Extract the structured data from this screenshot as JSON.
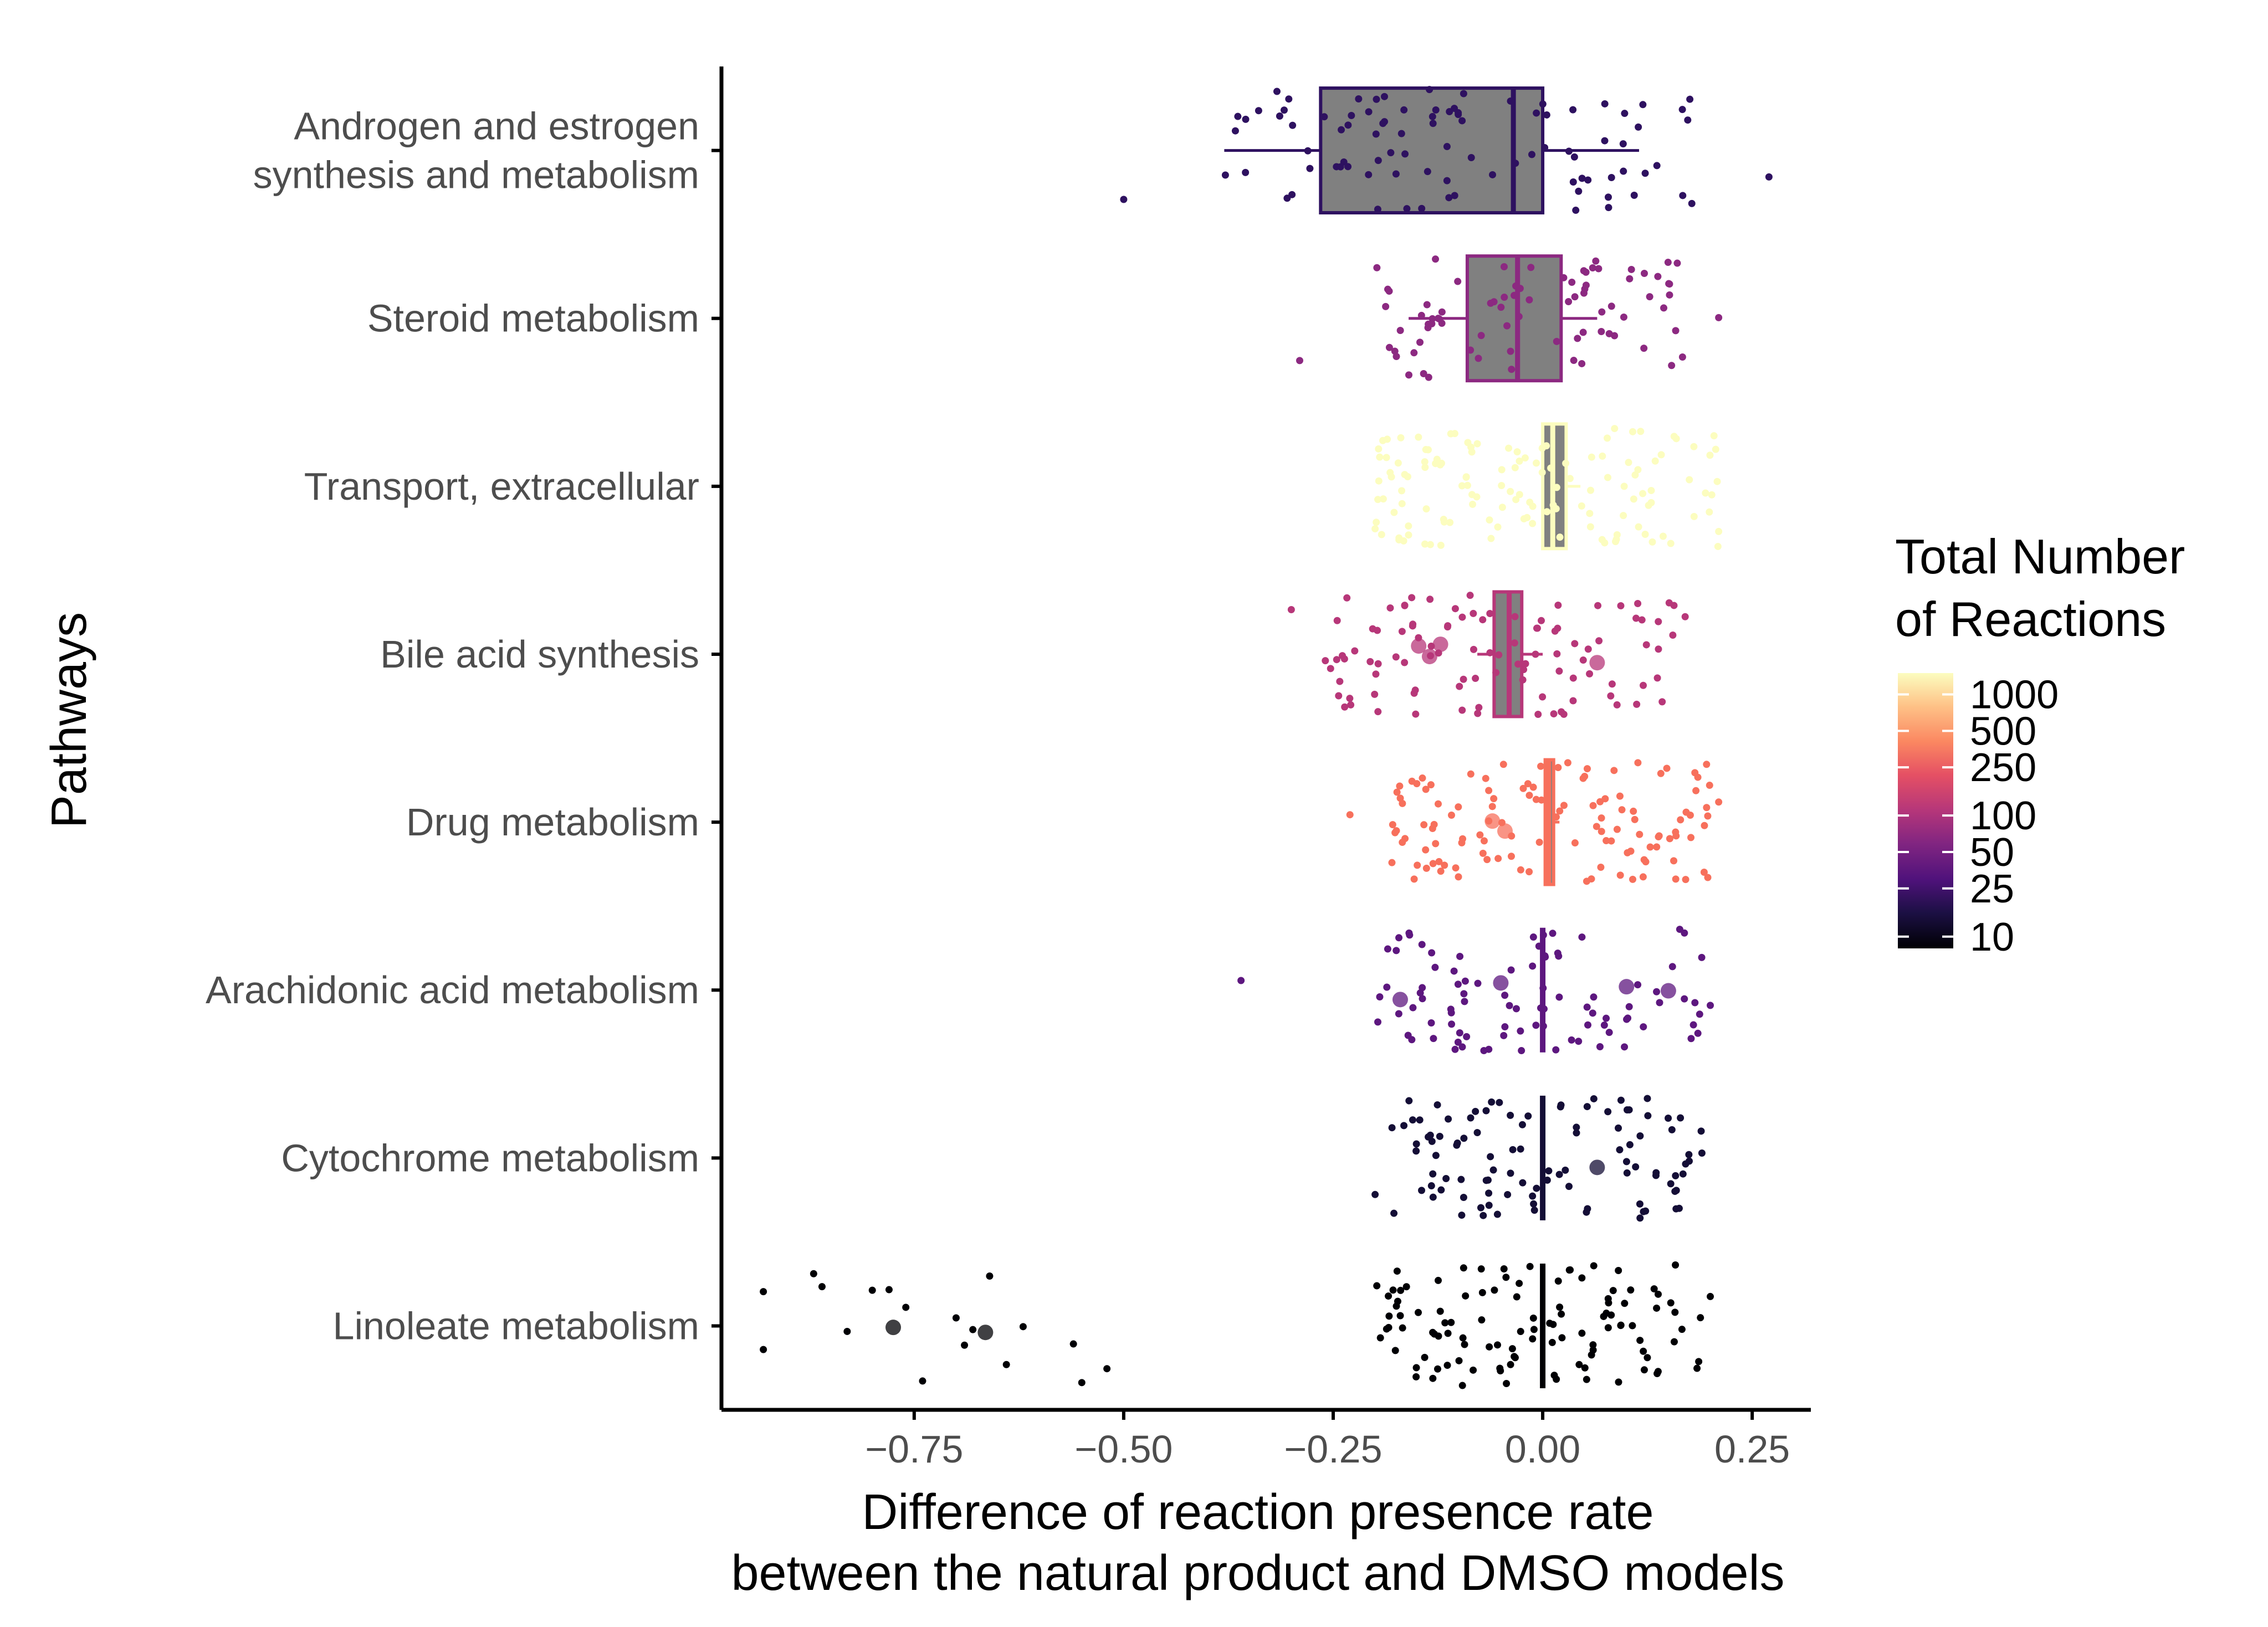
{
  "chart_data": {
    "type": "boxplot-jitter",
    "y_title": "Pathways",
    "x_title_line1": "Difference of reaction presence rate",
    "x_title_line2": "between the natural product and DMSO models",
    "xlim": [
      -0.98,
      0.32
    ],
    "x_ticks": [
      {
        "value": -0.75,
        "label": "−0.75"
      },
      {
        "value": -0.5,
        "label": "−0.50"
      },
      {
        "value": -0.25,
        "label": "−0.25"
      },
      {
        "value": 0.0,
        "label": "0.00"
      },
      {
        "value": 0.25,
        "label": "0.25"
      }
    ],
    "legend": {
      "title_line1": "Total Number",
      "title_line2": "of Reactions",
      "scale": "log",
      "min": 8,
      "max": 1500,
      "ticks": [
        {
          "value": 1000,
          "label": "1000"
        },
        {
          "value": 500,
          "label": "500"
        },
        {
          "value": 250,
          "label": "250"
        },
        {
          "value": 100,
          "label": "100"
        },
        {
          "value": 50,
          "label": "50"
        },
        {
          "value": 25,
          "label": "25"
        },
        {
          "value": 10,
          "label": "10"
        }
      ]
    },
    "pathways": [
      {
        "name_lines": [
          "Androgen and estrogen",
          "synthesis and metabolism"
        ],
        "color": "#2e1160",
        "box": {
          "min": -0.38,
          "q1": -0.265,
          "median": -0.035,
          "q3": 0.0,
          "max": 0.115
        },
        "n_points": 90,
        "x_range": [
          -0.5,
          0.27
        ],
        "spread": [
          -0.38,
          0.18
        ],
        "big_points": []
      },
      {
        "name_lines": [
          "Steroid metabolism"
        ],
        "color": "#8c2981",
        "box": {
          "min": -0.16,
          "q1": -0.09,
          "median": -0.03,
          "q3": 0.022,
          "max": 0.065
        },
        "n_points": 80,
        "x_range": [
          -0.29,
          0.21
        ],
        "spread": [
          -0.2,
          0.17
        ],
        "big_points": []
      },
      {
        "name_lines": [
          "Transport, extracellular"
        ],
        "color": "#fcfdbf",
        "box": {
          "min": 0.0,
          "q1": 0.0,
          "median": 0.012,
          "q3": 0.028,
          "max": 0.045
        },
        "n_points": 130,
        "x_range": [
          -0.2,
          0.21
        ],
        "spread": [
          -0.2,
          0.21
        ],
        "big_points": []
      },
      {
        "name_lines": [
          "Bile acid synthesis"
        ],
        "color": "#b73779",
        "box": {
          "min": -0.078,
          "q1": -0.058,
          "median": -0.04,
          "q3": -0.025,
          "max": 0.0
        },
        "n_points": 100,
        "x_range": [
          -0.3,
          0.17
        ],
        "spread": [
          -0.26,
          0.16
        ],
        "big_points": [
          -0.148,
          -0.135,
          -0.122,
          0.065
        ]
      },
      {
        "name_lines": [
          "Drug metabolism"
        ],
        "color": "#f7705c",
        "box": {
          "min": 0.003,
          "q1": 0.003,
          "median": 0.007,
          "q3": 0.013,
          "max": 0.02
        },
        "n_points": 120,
        "x_range": [
          -0.23,
          0.21
        ],
        "spread": [
          -0.18,
          0.2
        ],
        "big_points": [
          -0.06,
          -0.045
        ]
      },
      {
        "name_lines": [
          "Arachidonic acid metabolism"
        ],
        "color": "#5d177f",
        "box": {
          "min": 0.0,
          "q1": 0.0,
          "median": 0.0,
          "q3": 0.0,
          "max": 0.0
        },
        "n_points": 90,
        "x_range": [
          -0.36,
          0.2
        ],
        "spread": [
          -0.2,
          0.19
        ],
        "big_points": [
          -0.17,
          -0.05,
          0.1,
          0.15
        ]
      },
      {
        "name_lines": [
          "Cytochrome metabolism"
        ],
        "color": "#140e36",
        "box": {
          "min": 0.0,
          "q1": 0.0,
          "median": 0.0,
          "q3": 0.0,
          "max": 0.0
        },
        "n_points": 100,
        "x_range": [
          -0.2,
          0.19
        ],
        "spread": [
          -0.2,
          0.19
        ],
        "big_points": [
          0.065
        ]
      },
      {
        "name_lines": [
          "Linoleate metabolism"
        ],
        "color": "#000004",
        "box": {
          "min": 0.0,
          "q1": 0.0,
          "median": 0.0,
          "q3": 0.0,
          "max": 0.0
        },
        "n_points": 110,
        "x_range": [
          -0.93,
          0.2
        ],
        "spread": [
          -0.2,
          0.2
        ],
        "big_points": [
          -0.775,
          -0.665
        ],
        "outliers": [
          -0.93,
          -0.87,
          -0.86,
          -0.83,
          -0.8,
          -0.78,
          -0.76,
          -0.74,
          -0.7,
          -0.69,
          -0.68,
          -0.66,
          -0.64,
          -0.62,
          -0.56,
          -0.55,
          -0.52
        ]
      }
    ]
  }
}
